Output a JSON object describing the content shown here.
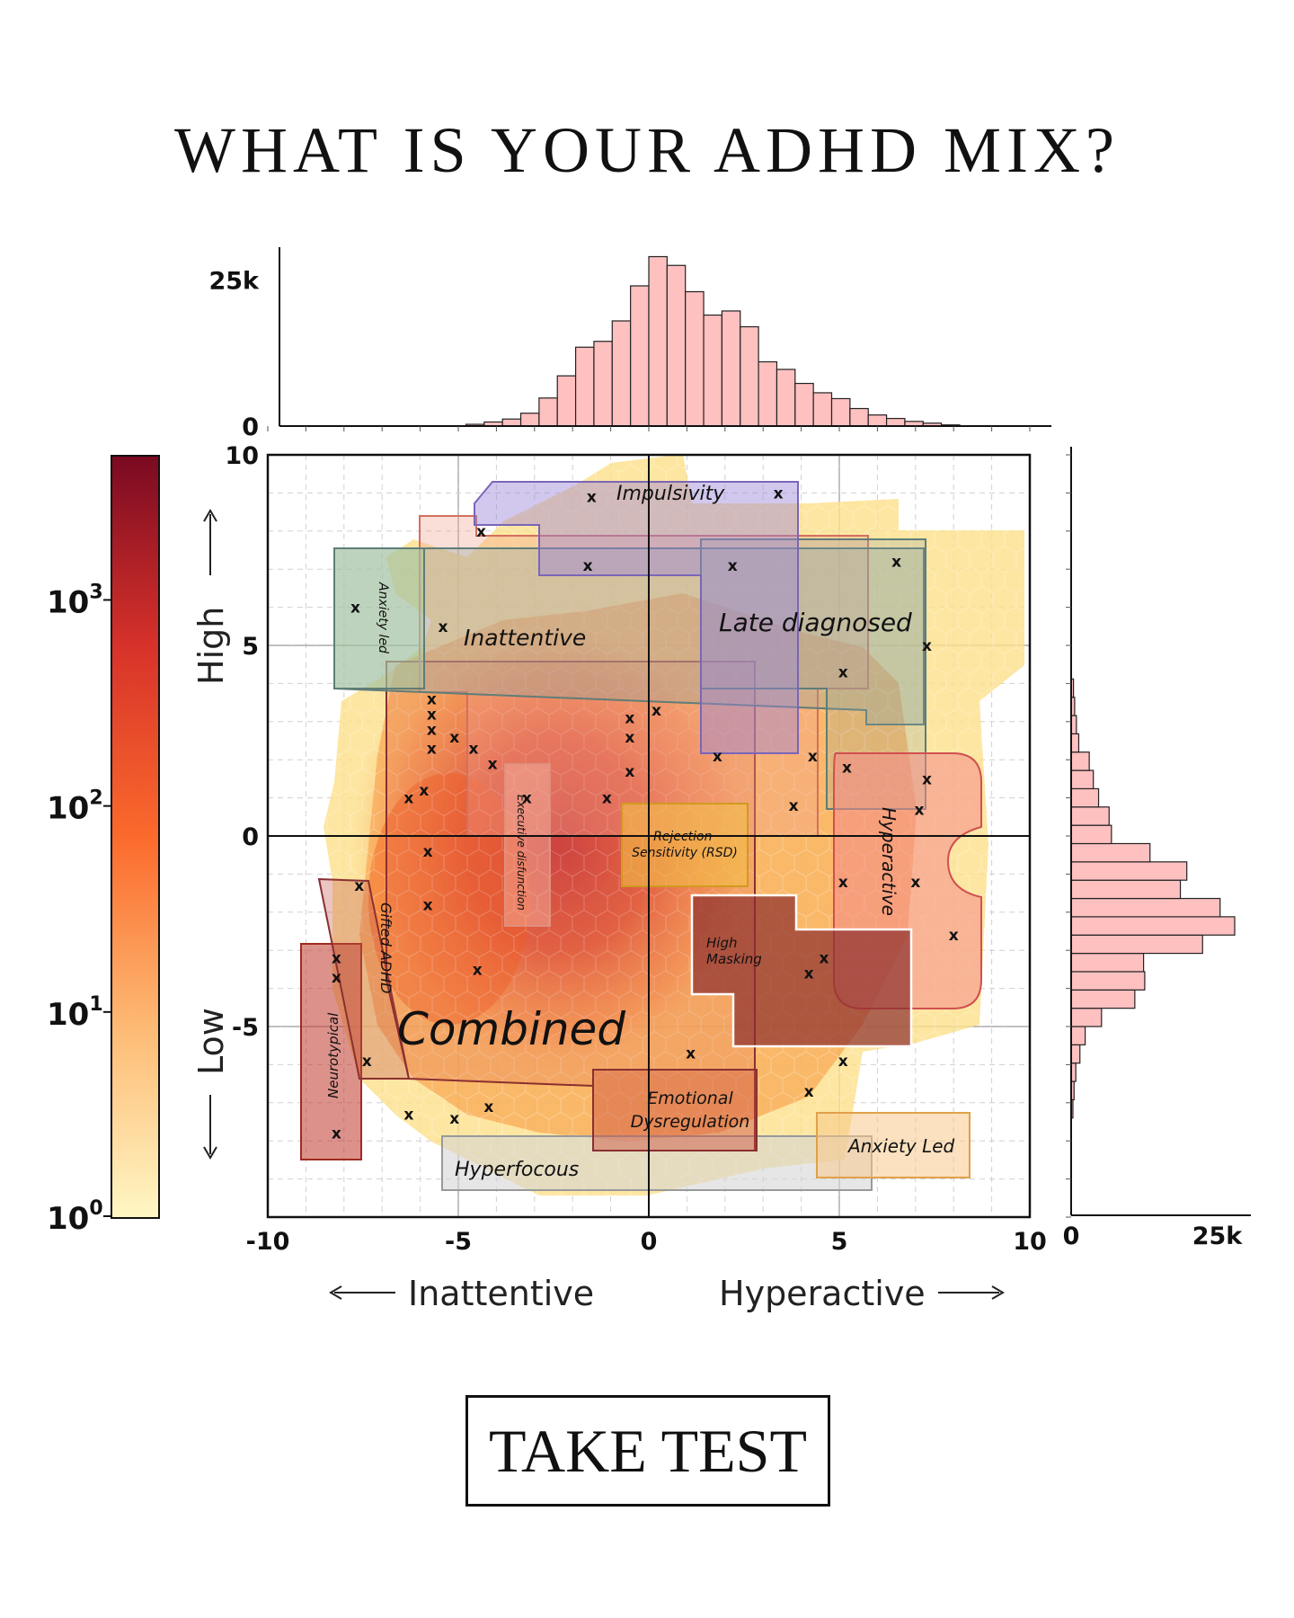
{
  "page": {
    "title": "WHAT IS YOUR ADHD MIX?",
    "cta_label": "TAKE TEST"
  },
  "chart_data": {
    "type": "heatmap",
    "title": "",
    "x_axis": {
      "range": [
        -10,
        10
      ],
      "ticks": [
        -10,
        -5,
        0,
        5,
        10
      ],
      "tick_labels": [
        "-10",
        "-5",
        "0",
        "5",
        "10"
      ],
      "left_caption": "Inattentive",
      "right_caption": "Hyperactive"
    },
    "y_axis": {
      "range": [
        -10,
        10
      ],
      "ticks": [
        -5,
        0,
        5,
        10
      ],
      "tick_labels": [
        "-5",
        "0",
        "5",
        "10"
      ],
      "top_caption": "High",
      "bottom_caption": "Low"
    },
    "grid": true,
    "colorbar": {
      "scale": "log",
      "range": [
        1,
        10000
      ],
      "tick_labels": [
        {
          "base": "10",
          "exp": "0",
          "value": 1
        },
        {
          "base": "10",
          "exp": "1",
          "value": 10
        },
        {
          "base": "10",
          "exp": "2",
          "value": 100
        },
        {
          "base": "10",
          "exp": "3",
          "value": 1000
        }
      ],
      "colors": [
        "#fff7c4",
        "#fdba74",
        "#fb6a2c",
        "#d7322a",
        "#7a0a22"
      ]
    },
    "top_histogram": {
      "y_tick_labels": [
        "0",
        "25k"
      ],
      "y_tick_values": [
        0,
        25000
      ],
      "bins_x_start": -4.8,
      "bin_width": 0.48,
      "counts": [
        300,
        700,
        1200,
        2200,
        4800,
        8600,
        13500,
        14500,
        18000,
        24000,
        29000,
        27500,
        23000,
        19000,
        19700,
        17000,
        11000,
        9700,
        7300,
        5700,
        4700,
        3000,
        1900,
        1300,
        800,
        500,
        200
      ]
    },
    "right_histogram": {
      "x_tick_labels": [
        "0",
        "25k"
      ],
      "x_tick_values": [
        0,
        25000
      ],
      "bins_y_start": -7.4,
      "bin_width": 0.48,
      "counts": [
        300,
        500,
        800,
        1500,
        2400,
        5200,
        10900,
        12600,
        12400,
        22500,
        28000,
        25500,
        18700,
        19800,
        13500,
        6900,
        6500,
        4700,
        3800,
        3100,
        1300,
        900,
        600,
        400
      ]
    },
    "regions": [
      {
        "name": "Impulsivity",
        "color": "#9c86d8"
      },
      {
        "name": "Inattentive",
        "color": "#f2a090"
      },
      {
        "name": "Late diagnosed",
        "color": "#8fa8a4"
      },
      {
        "name": "Anxiety led",
        "color": "#a8c8a0"
      },
      {
        "name": "Gifted ADHD",
        "color": "#c25a4e"
      },
      {
        "name": "Neurotypical",
        "color": "#c0392b"
      },
      {
        "name": "Combined",
        "color": "#d9534f"
      },
      {
        "name": "Executive disfunction",
        "color": "#f7b9a6"
      },
      {
        "name": "Rejection Sensitivity (RSD)",
        "color": "#f4c04a"
      },
      {
        "name": "Hyperactive",
        "color": "#f48a8a"
      },
      {
        "name": "High Masking",
        "color": "#8b2e2e"
      },
      {
        "name": "Emotional Dysregulation",
        "color": "#c94f3c"
      },
      {
        "name": "Anxiety Led",
        "color": "#f7c98a"
      },
      {
        "name": "Hyperfocous",
        "color": "#d6d6d6"
      }
    ],
    "points": [
      [
        -1.5,
        8.9
      ],
      [
        3.4,
        9.0
      ],
      [
        -4.4,
        8.0
      ],
      [
        -1.6,
        7.1
      ],
      [
        2.2,
        7.1
      ],
      [
        6.5,
        7.2
      ],
      [
        -7.7,
        6.0
      ],
      [
        -5.4,
        5.5
      ],
      [
        7.3,
        5.0
      ],
      [
        5.1,
        4.3
      ],
      [
        -5.7,
        3.6
      ],
      [
        -5.7,
        3.2
      ],
      [
        0.2,
        3.3
      ],
      [
        -0.5,
        3.1
      ],
      [
        -5.7,
        2.8
      ],
      [
        -5.1,
        2.6
      ],
      [
        -0.5,
        2.6
      ],
      [
        -5.7,
        2.3
      ],
      [
        -4.6,
        2.3
      ],
      [
        -4.1,
        1.9
      ],
      [
        1.8,
        2.1
      ],
      [
        4.3,
        2.1
      ],
      [
        5.2,
        1.8
      ],
      [
        -0.5,
        1.7
      ],
      [
        7.3,
        1.5
      ],
      [
        -5.9,
        1.2
      ],
      [
        -6.3,
        1.0
      ],
      [
        -1.1,
        1.0
      ],
      [
        -3.2,
        1.0
      ],
      [
        3.8,
        0.8
      ],
      [
        7.1,
        0.7
      ],
      [
        -5.8,
        -0.4
      ],
      [
        -7.6,
        -1.3
      ],
      [
        5.1,
        -1.2
      ],
      [
        7.0,
        -1.2
      ],
      [
        -5.8,
        -1.8
      ],
      [
        8.0,
        -2.6
      ],
      [
        -8.2,
        -3.2
      ],
      [
        4.6,
        -3.2
      ],
      [
        -4.5,
        -3.5
      ],
      [
        4.2,
        -3.6
      ],
      [
        -8.2,
        -3.7
      ],
      [
        -7.4,
        -5.9
      ],
      [
        1.1,
        -5.7
      ],
      [
        5.1,
        -5.9
      ],
      [
        4.2,
        -6.7
      ],
      [
        -4.2,
        -7.1
      ],
      [
        -6.3,
        -7.3
      ],
      [
        -5.1,
        -7.4
      ],
      [
        -8.2,
        -7.8
      ]
    ]
  }
}
